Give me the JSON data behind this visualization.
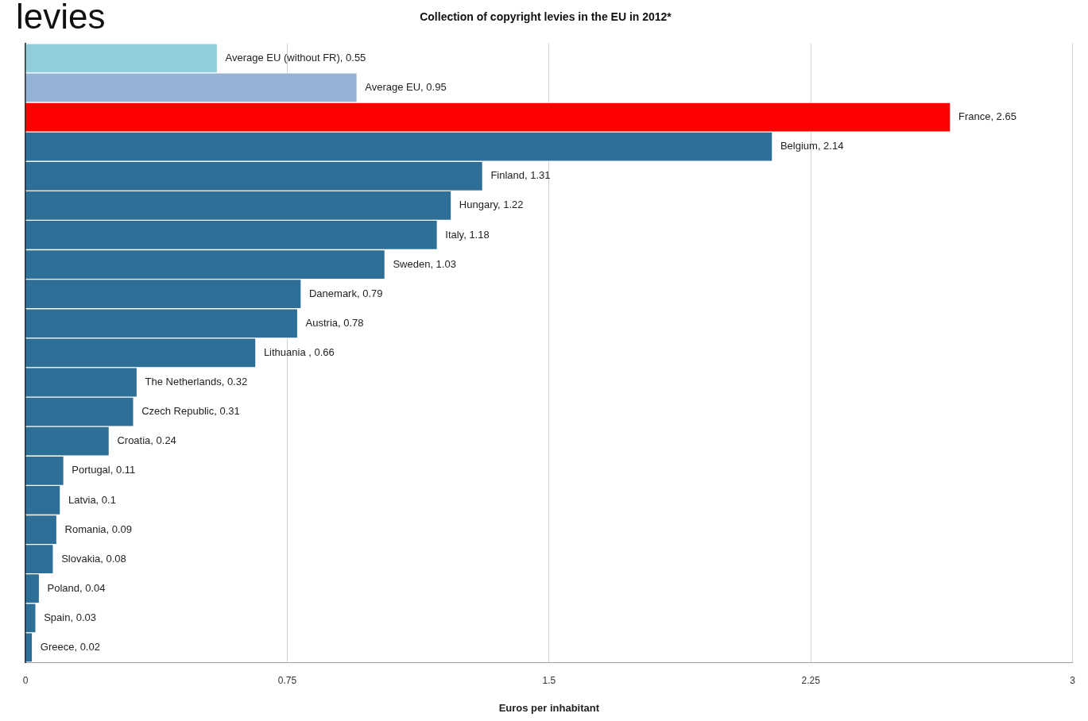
{
  "chart_data": {
    "type": "bar",
    "orientation": "horizontal",
    "title": "Collection of copyright levies in the EU in 2012*",
    "xlabel": "Euros per inhabitant",
    "annotations": [
      "levies"
    ],
    "categories": [
      null,
      null,
      null,
      null,
      null,
      null,
      null,
      null,
      null,
      null,
      null,
      null,
      null,
      null,
      null,
      null,
      null,
      null,
      null,
      null,
      null
    ],
    "values": [
      0.55,
      0.95,
      2.65,
      2.14,
      1.31,
      1.22,
      1.18,
      1.03,
      0.79,
      0.78,
      0.66,
      0.32,
      0.31,
      0.24,
      0.11,
      0.1,
      0.09,
      0.08,
      0.04,
      0.03,
      0.02
    ],
    "value_labels": [
      "Average EU (without FR), 0.55",
      "Average EU, 0.95",
      "France, 2.65",
      "Belgium, 2.14",
      "Finland, 1.31",
      "Hungary, 1.22",
      "Italy, 1.18",
      "Sweden, 1.03",
      "Danemark, 0.79",
      "Austria, 0.78",
      "Lithuania , 0.66",
      "The Netherlands, 0.32",
      "Czech Republic, 0.31",
      "Croatia, 0.24",
      "Portugal, 0.11",
      "Latvia, 0.1",
      "Romania, 0.09",
      "Slovakia, 0.08",
      "Poland, 0.04",
      "Spain, 0.03",
      "Greece, 0.02"
    ],
    "colors": [
      "#92cddc",
      "#95b3d7",
      "#ff0000",
      "#2e6f98",
      "#2e6f98",
      "#2e6f98",
      "#2e6f98",
      "#2e6f98",
      "#2e6f98",
      "#2e6f98",
      "#2e6f98",
      "#2e6f98",
      "#2e6f98",
      "#2e6f98",
      "#2e6f98",
      "#2e6f98",
      "#2e6f98",
      "#2e6f98",
      "#2e6f98",
      "#2e6f98",
      "#2e6f98"
    ],
    "xlim": [
      0,
      3
    ],
    "xticks": [
      0,
      0.75,
      1.5,
      2.25,
      3
    ],
    "grid": "x",
    "legend": false
  }
}
